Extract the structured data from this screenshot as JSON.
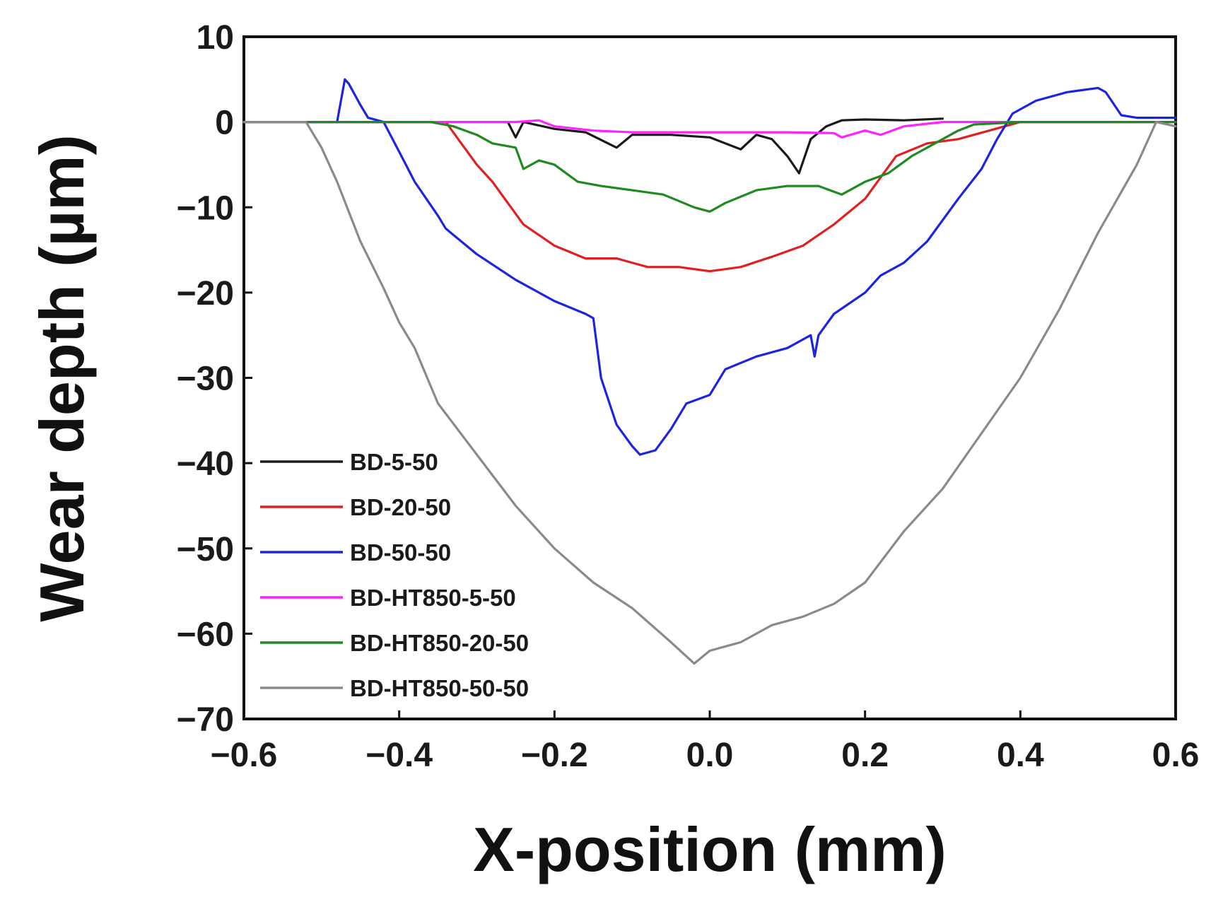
{
  "chart_data": {
    "type": "line",
    "title": "",
    "xlabel": "X-position (mm)",
    "ylabel": "Wear depth (µm)",
    "xlim": [
      -0.6,
      0.6
    ],
    "ylim": [
      -70,
      10
    ],
    "x_ticks": [
      -0.6,
      -0.4,
      -0.2,
      0.0,
      0.2,
      0.4,
      0.6
    ],
    "x_tick_labels": [
      "−0.6",
      "−0.4",
      "−0.2",
      "0.0",
      "0.2",
      "0.4",
      "0.6"
    ],
    "y_ticks": [
      10,
      0,
      -10,
      -20,
      -30,
      -40,
      -50,
      -60,
      -70
    ],
    "y_tick_labels": [
      "10",
      "0",
      "−10",
      "−20",
      "−30",
      "−40",
      "−50",
      "−60",
      "−70"
    ],
    "grid": false,
    "legend_position": "bottom-left",
    "series": [
      {
        "name": "BD-5-50",
        "color": "#1a1a1a",
        "x": [
          -0.6,
          -0.4,
          -0.26,
          -0.25,
          -0.24,
          -0.2,
          -0.16,
          -0.12,
          -0.1,
          -0.05,
          0.0,
          0.04,
          0.06,
          0.08,
          0.1,
          0.115,
          0.13,
          0.15,
          0.17,
          0.2,
          0.25,
          0.3
        ],
        "y": [
          0,
          0,
          0,
          -1.8,
          0,
          -0.8,
          -1.2,
          -3.0,
          -1.5,
          -1.5,
          -1.8,
          -3.2,
          -1.5,
          -2.0,
          -4.0,
          -6.0,
          -2.0,
          -0.5,
          0.2,
          0.3,
          0.2,
          0.4
        ]
      },
      {
        "name": "BD-20-50",
        "color": "#e02020",
        "x": [
          -0.6,
          -0.34,
          -0.32,
          -0.3,
          -0.28,
          -0.26,
          -0.24,
          -0.2,
          -0.16,
          -0.12,
          -0.08,
          -0.04,
          0.0,
          0.04,
          0.08,
          0.12,
          0.16,
          0.2,
          0.24,
          0.28,
          0.32,
          0.36,
          0.4,
          0.6
        ],
        "y": [
          0,
          0,
          -2.5,
          -5.0,
          -7.0,
          -9.5,
          -12.0,
          -14.5,
          -16.0,
          -16.0,
          -17.0,
          -17.0,
          -17.5,
          -17.0,
          -15.8,
          -14.5,
          -12.0,
          -9.0,
          -4.0,
          -2.5,
          -2.0,
          -1.0,
          0,
          0
        ]
      },
      {
        "name": "BD-50-50",
        "color": "#1d24e0",
        "x": [
          -0.6,
          -0.48,
          -0.47,
          -0.465,
          -0.45,
          -0.44,
          -0.42,
          -0.4,
          -0.38,
          -0.35,
          -0.34,
          -0.3,
          -0.25,
          -0.2,
          -0.16,
          -0.15,
          -0.14,
          -0.12,
          -0.1,
          -0.09,
          -0.07,
          -0.05,
          -0.03,
          0.0,
          0.02,
          0.06,
          0.1,
          0.13,
          0.135,
          0.14,
          0.16,
          0.2,
          0.22,
          0.25,
          0.28,
          0.32,
          0.35,
          0.37,
          0.39,
          0.42,
          0.46,
          0.5,
          0.51,
          0.53,
          0.55,
          0.6
        ],
        "y": [
          0,
          0,
          5.0,
          4.5,
          2.0,
          0.5,
          0,
          -3.5,
          -7.0,
          -11.0,
          -12.5,
          -15.5,
          -18.5,
          -21.0,
          -22.5,
          -23.0,
          -30.0,
          -35.5,
          -38.0,
          -39.0,
          -38.5,
          -36.0,
          -33.0,
          -32.0,
          -29.0,
          -27.5,
          -26.5,
          -25.0,
          -27.5,
          -25.0,
          -22.5,
          -20.0,
          -18.0,
          -16.5,
          -14.0,
          -9.0,
          -5.5,
          -2.0,
          1.0,
          2.5,
          3.5,
          4.0,
          3.5,
          0.8,
          0.5,
          0.5
        ]
      },
      {
        "name": "BD-HT850-5-50",
        "color": "#ff22ff",
        "x": [
          -0.6,
          -0.25,
          -0.22,
          -0.2,
          -0.15,
          -0.1,
          0.0,
          0.1,
          0.16,
          0.17,
          0.2,
          0.22,
          0.25,
          0.3,
          0.6
        ],
        "y": [
          0,
          0,
          0.2,
          -0.5,
          -1.0,
          -1.2,
          -1.2,
          -1.2,
          -1.3,
          -1.8,
          -1.0,
          -1.5,
          -0.5,
          0,
          0
        ]
      },
      {
        "name": "BD-HT850-20-50",
        "color": "#1f8a1f",
        "x": [
          -0.6,
          -0.36,
          -0.33,
          -0.3,
          -0.28,
          -0.25,
          -0.24,
          -0.22,
          -0.2,
          -0.17,
          -0.14,
          -0.1,
          -0.06,
          -0.02,
          0.0,
          0.02,
          0.06,
          0.1,
          0.14,
          0.17,
          0.2,
          0.23,
          0.26,
          0.29,
          0.32,
          0.34,
          0.4,
          0.6
        ],
        "y": [
          0,
          0,
          -0.5,
          -1.5,
          -2.5,
          -3.0,
          -5.5,
          -4.5,
          -5.0,
          -7.0,
          -7.5,
          -8.0,
          -8.5,
          -10.0,
          -10.5,
          -9.5,
          -8.0,
          -7.5,
          -7.5,
          -8.5,
          -7.0,
          -6.0,
          -4.0,
          -2.5,
          -1.0,
          -0.3,
          0,
          0
        ]
      },
      {
        "name": "BD-HT850-50-50",
        "color": "#8a8a8a",
        "x": [
          -0.6,
          -0.52,
          -0.5,
          -0.48,
          -0.45,
          -0.42,
          -0.4,
          -0.38,
          -0.35,
          -0.3,
          -0.25,
          -0.2,
          -0.15,
          -0.1,
          -0.05,
          -0.02,
          0.0,
          0.04,
          0.08,
          0.12,
          0.16,
          0.2,
          0.25,
          0.3,
          0.35,
          0.4,
          0.45,
          0.5,
          0.55,
          0.575,
          0.6
        ],
        "y": [
          0,
          0,
          -3.0,
          -7.0,
          -14.0,
          -19.5,
          -23.5,
          -26.5,
          -33.0,
          -39.0,
          -45.0,
          -50.0,
          -54.0,
          -57.0,
          -61.0,
          -63.5,
          -62.0,
          -61.0,
          -59.0,
          -58.0,
          -56.5,
          -54.0,
          -48.0,
          -43.0,
          -36.5,
          -30.0,
          -22.0,
          -13.0,
          -5.0,
          0,
          -0.5
        ]
      }
    ]
  }
}
